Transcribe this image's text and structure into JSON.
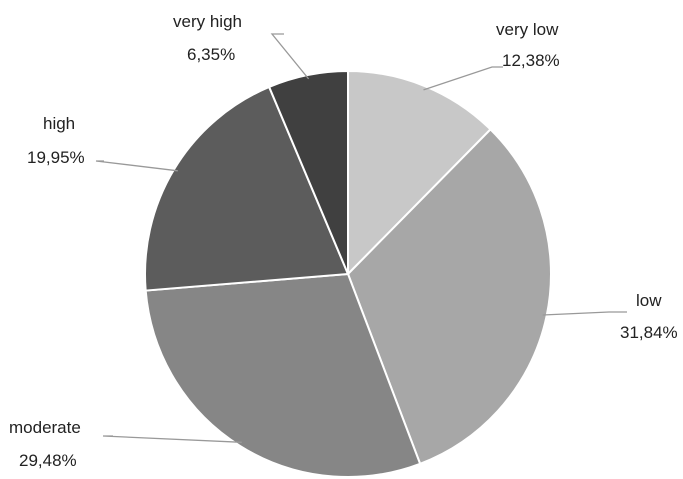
{
  "chart_data": {
    "type": "pie",
    "title": "",
    "start_angle_deg": 0,
    "direction": "clockwise",
    "legend": "none",
    "slices": [
      {
        "label": "very low",
        "value": 12.38,
        "value_label": "12,38%",
        "color": "#c8c8c8"
      },
      {
        "label": "low",
        "value": 31.84,
        "value_label": "31,84%",
        "color": "#a7a7a7"
      },
      {
        "label": "moderate",
        "value": 29.48,
        "value_label": "29,48%",
        "color": "#868686"
      },
      {
        "label": "high",
        "value": 19.95,
        "value_label": "19,95%",
        "color": "#5c5c5c"
      },
      {
        "label": "very high",
        "value": 6.35,
        "value_label": "6,35%",
        "color": "#404040"
      }
    ]
  }
}
